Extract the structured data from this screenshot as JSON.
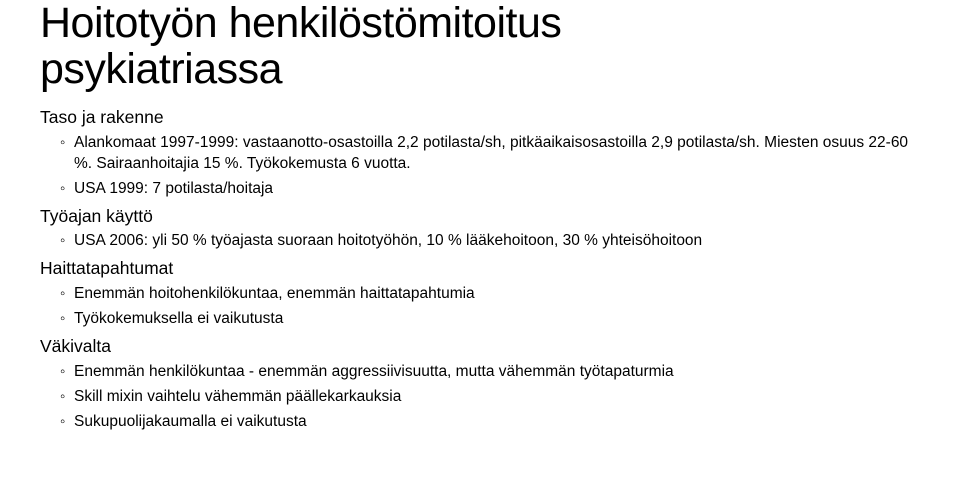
{
  "title_line1": "Hoitotyön henkilöstömitoitus",
  "title_line2": "psykiatriassa",
  "sections": [
    {
      "heading": "Taso ja rakenne",
      "items": [
        "Alankomaat 1997-1999: vastaanotto-osastoilla 2,2 potilasta/sh, pitkäaikaisosastoilla 2,9 potilasta/sh. Miesten osuus 22-60 %. Sairaanhoitajia 15 %. Työkokemusta 6 vuotta.",
        "USA 1999: 7 potilasta/hoitaja"
      ]
    },
    {
      "heading": "Työajan käyttö",
      "items": [
        "USA 2006: yli 50 % työajasta suoraan hoitotyöhön, 10 % lääkehoitoon, 30 % yhteisöhoitoon"
      ]
    },
    {
      "heading": "Haittatapahtumat",
      "items": [
        "Enemmän hoitohenkilökuntaa, enemmän haittatapahtumia",
        "Työkokemuksella ei vaikutusta"
      ]
    },
    {
      "heading": "Väkivalta",
      "items": [
        "Enemmän henkilökuntaa - enemmän aggressiivisuutta, mutta vähemmän työtapaturmia",
        "Skill mixin vaihtelu vähemmän päällekarkauksia",
        "Sukupuolijakaumalla ei vaikutusta"
      ]
    }
  ]
}
